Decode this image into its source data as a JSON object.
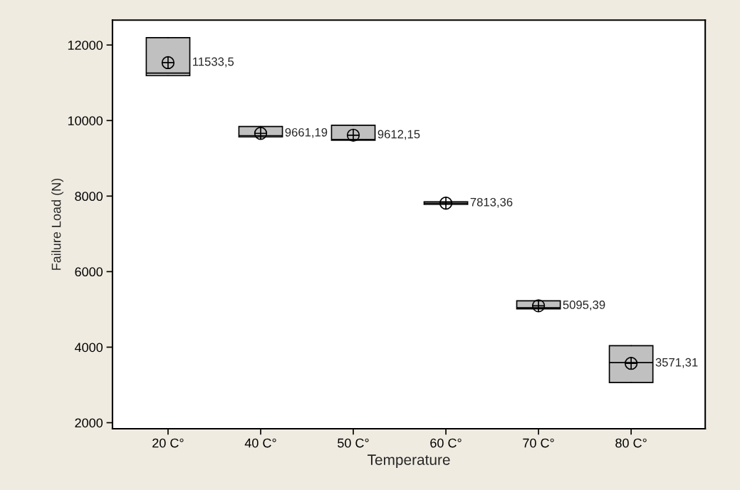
{
  "chart_data": {
    "type": "box",
    "xlabel": "Temperature",
    "ylabel": "Failure Load (N)",
    "categories": [
      "20 C°",
      "40 C°",
      "50 C°",
      "60 C°",
      "70 C°",
      "80 C°"
    ],
    "boxes": [
      {
        "low": 11189,
        "q1": 11189,
        "median": 11258,
        "q3": 12194,
        "high": 12194,
        "mean": 11533.5
      },
      {
        "low": 9566,
        "q1": 9566,
        "median": 9600,
        "q3": 9843,
        "high": 9843,
        "mean": 9661.19
      },
      {
        "low": 9477,
        "q1": 9477,
        "median": 9500,
        "q3": 9874,
        "high": 9874,
        "mean": 9612.15
      },
      {
        "low": 7780,
        "q1": 7780,
        "median": 7813,
        "q3": 7850,
        "high": 7850,
        "mean": 7813.36
      },
      {
        "low": 5013,
        "q1": 5013,
        "median": 5043,
        "q3": 5226,
        "high": 5226,
        "mean": 5095.39
      },
      {
        "low": 3064,
        "q1": 3064,
        "median": 3591,
        "q3": 4038,
        "high": 4038,
        "mean": 3571.31
      }
    ],
    "value_labels": [
      "11533,5",
      "9661,19",
      "9612,15",
      "7813,36",
      "5095,39",
      "3571,31"
    ],
    "color": "#c0c0c0",
    "ylim": [
      1840,
      12660
    ],
    "yticks": [
      2000,
      4000,
      6000,
      8000,
      10000,
      12000
    ],
    "grid": false,
    "legend": false
  }
}
